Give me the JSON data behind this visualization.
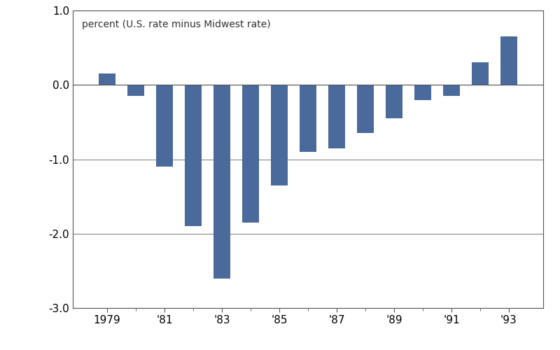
{
  "years": [
    1979,
    1980,
    1981,
    1982,
    1983,
    1984,
    1985,
    1986,
    1987,
    1988,
    1989,
    1990,
    1991,
    1992,
    1993
  ],
  "values": [
    0.15,
    -0.15,
    -1.1,
    -1.9,
    -2.6,
    -1.85,
    -1.35,
    -0.9,
    -0.85,
    -0.65,
    -0.45,
    -0.2,
    -0.15,
    0.3,
    0.65
  ],
  "bar_color": "#4a6a9c",
  "ylabel_text": "percent (U.S. rate minus Midwest rate)",
  "ylim": [
    -3.0,
    1.0
  ],
  "yticks": [
    -3.0,
    -2.0,
    -1.0,
    0.0,
    1.0
  ],
  "xtick_labeled": [
    1979,
    1981,
    1983,
    1985,
    1987,
    1989,
    1991,
    1993
  ],
  "xtick_labels": [
    "1979",
    "'81",
    "'83",
    "'85",
    "'87",
    "'89",
    "'91",
    "'93"
  ],
  "xtick_minor": [
    1980,
    1982,
    1984,
    1986,
    1988,
    1990,
    1992
  ],
  "background_color": "#ffffff",
  "bar_width": 0.6,
  "xlim": [
    1977.8,
    1994.2
  ],
  "spine_color": "#555555",
  "hline_color": "#888888"
}
